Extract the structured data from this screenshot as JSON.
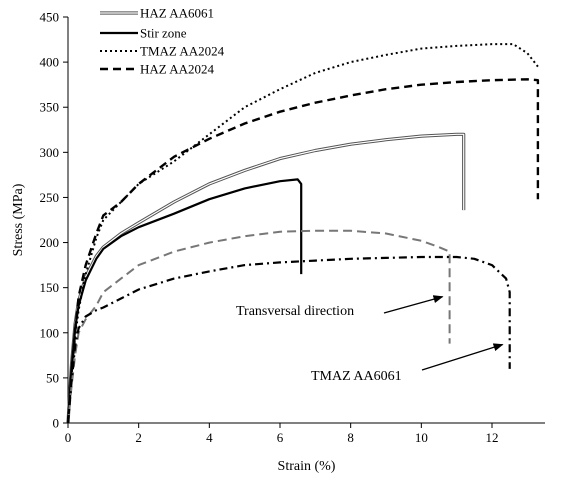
{
  "chart_data": {
    "type": "line",
    "xlabel": "Strain (%)",
    "ylabel": "Stress (MPa)",
    "xlim": [
      0,
      13.5
    ],
    "ylim": [
      0,
      450
    ],
    "xticks": [
      0,
      2,
      4,
      6,
      8,
      10,
      12
    ],
    "yticks": [
      0,
      50,
      100,
      150,
      200,
      250,
      300,
      350,
      400,
      450
    ],
    "grid": false,
    "legend_position": "top-left",
    "series": [
      {
        "name": "HAZ AA6061",
        "style": "double",
        "color": "#555555",
        "x": [
          0,
          0.1,
          0.2,
          0.3,
          0.5,
          0.8,
          1.0,
          1.5,
          2.0,
          3.0,
          4.0,
          5.0,
          6.0,
          7.0,
          8.0,
          9.0,
          10.0,
          11.0,
          11.2,
          11.2
        ],
        "y": [
          0,
          65,
          110,
          135,
          162,
          185,
          195,
          210,
          222,
          245,
          265,
          280,
          293,
          302,
          309,
          314,
          318,
          320,
          320,
          236
        ]
      },
      {
        "name": "Stir zone",
        "style": "solid",
        "color": "#000000",
        "x": [
          0,
          0.1,
          0.2,
          0.3,
          0.5,
          0.8,
          1.0,
          1.5,
          2.0,
          3.0,
          4.0,
          5.0,
          6.0,
          6.5,
          6.6,
          6.6
        ],
        "y": [
          0,
          60,
          105,
          130,
          158,
          182,
          193,
          207,
          217,
          232,
          248,
          260,
          268,
          270,
          265,
          165
        ]
      },
      {
        "name": "TMAZ AA2024",
        "style": "dotted",
        "color": "#000000",
        "x": [
          0,
          0.1,
          0.2,
          0.3,
          0.5,
          0.8,
          1.0,
          1.5,
          2.0,
          3.0,
          4.0,
          5.0,
          6.0,
          7.0,
          8.0,
          9.0,
          10.0,
          11.0,
          12.0,
          12.6,
          13.0,
          13.3
        ],
        "y": [
          0,
          50,
          95,
          125,
          165,
          205,
          225,
          245,
          265,
          290,
          320,
          350,
          370,
          388,
          400,
          408,
          415,
          418,
          420,
          420,
          410,
          395
        ]
      },
      {
        "name": "HAZ AA2024",
        "style": "dashed",
        "color": "#000000",
        "x": [
          0,
          0.1,
          0.2,
          0.3,
          0.5,
          0.8,
          1.0,
          1.5,
          2.0,
          3.0,
          4.0,
          5.0,
          6.0,
          7.0,
          8.0,
          9.0,
          10.0,
          11.0,
          12.0,
          13.0,
          13.3,
          13.3
        ],
        "y": [
          0,
          55,
          100,
          140,
          175,
          210,
          230,
          245,
          265,
          295,
          315,
          332,
          345,
          355,
          363,
          370,
          375,
          378,
          380,
          381,
          380,
          248
        ]
      },
      {
        "name": "",
        "style": "dashed-thin",
        "color": "#777777",
        "x": [
          0,
          0.1,
          0.2,
          0.3,
          0.5,
          0.8,
          1.0,
          1.5,
          2.0,
          3.0,
          4.0,
          5.0,
          6.0,
          7.0,
          8.0,
          9.0,
          10.0,
          10.5,
          10.8,
          10.8
        ],
        "y": [
          0,
          40,
          75,
          100,
          115,
          130,
          145,
          160,
          175,
          190,
          200,
          207,
          212,
          213,
          213,
          210,
          202,
          195,
          190,
          88
        ]
      },
      {
        "name": "",
        "style": "dashdot",
        "color": "#000000",
        "x": [
          0,
          0.1,
          0.2,
          0.3,
          0.5,
          0.8,
          1.0,
          1.5,
          2.0,
          3.0,
          4.0,
          5.0,
          6.0,
          7.0,
          8.0,
          9.0,
          10.0,
          11.0,
          11.5,
          12.0,
          12.4,
          12.5,
          12.5
        ],
        "y": [
          0,
          45,
          85,
          105,
          118,
          125,
          128,
          138,
          148,
          160,
          168,
          175,
          178,
          180,
          182,
          183,
          184,
          184,
          182,
          175,
          160,
          145,
          60
        ]
      }
    ],
    "annotations": [
      {
        "text": "Transversal direction",
        "x": 4.4,
        "y": 122,
        "arrow_to": [
          10.6,
          140
        ]
      },
      {
        "text": "TMAZ AA6061",
        "x": 6.6,
        "y": 47,
        "arrow_to": [
          12.3,
          87
        ]
      }
    ]
  }
}
